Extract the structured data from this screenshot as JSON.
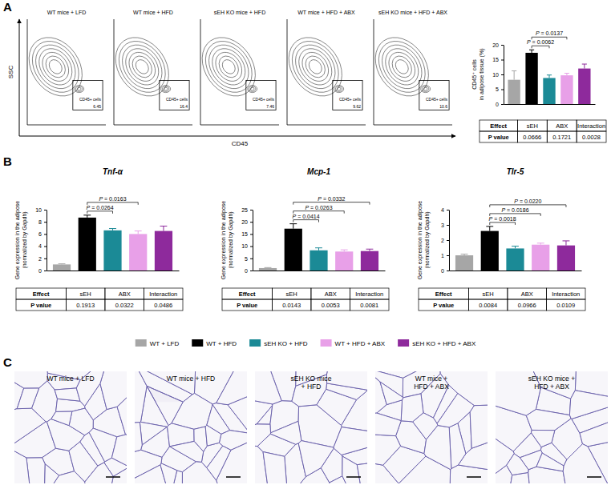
{
  "panel_labels": [
    "A",
    "B",
    "C"
  ],
  "flow": {
    "xlabel": "CD45",
    "ylabel": "SSC",
    "gate_label": "CD45+ cells",
    "plots": [
      {
        "title": "WT mice + LFD",
        "value": 6.45
      },
      {
        "title": "WT mice + HFD",
        "value": 16.4
      },
      {
        "title": "sEH KO mice + HFD",
        "value": 7.46
      },
      {
        "title": "WT mice + HFD + ABX",
        "value": 9.62
      },
      {
        "title": "sEH KO mice + HFD + ABX",
        "value": 10.6
      }
    ]
  },
  "chart_data": [
    {
      "type": "bar",
      "ylabel": [
        "CD45⁺ cells",
        "in adipose tissue (%)"
      ],
      "categories": [
        null,
        null,
        null,
        null,
        null
      ],
      "values": [
        8.2,
        17.3,
        8.8,
        9.7,
        12.0
      ],
      "errors": [
        3.0,
        1.0,
        1.0,
        0.7,
        1.5
      ],
      "colors": [
        "#a6a6a6",
        "#000000",
        "#1b8a96",
        "#e8a0e8",
        "#8e2a9c"
      ],
      "ylim": [
        0,
        20
      ],
      "yticks": [
        0,
        5,
        10,
        15,
        20
      ],
      "tick_labels": "y",
      "comparisons": [
        {
          "from": 1,
          "to": 3,
          "label": "P = 0.0137"
        },
        {
          "from": 1,
          "to": 2,
          "label": "P = 0.0062"
        }
      ],
      "table": {
        "header": [
          "Effect",
          "sEH",
          "ABX",
          "Interaction"
        ],
        "row": [
          "P value",
          "0.0666",
          "0.1721",
          "0.0028"
        ]
      }
    },
    {
      "type": "bar",
      "title": "Tnf-α",
      "ylabel": [
        "Gene expression in the adipose",
        "(normalized by Gapdh)"
      ],
      "categories": [
        null,
        null,
        null,
        null,
        null
      ],
      "values": [
        1.0,
        8.7,
        6.6,
        6.0,
        6.5
      ],
      "errors": [
        0.1,
        0.4,
        0.3,
        0.5,
        0.8
      ],
      "colors": [
        "#a6a6a6",
        "#000000",
        "#1b8a96",
        "#e8a0e8",
        "#8e2a9c"
      ],
      "ylim": [
        0,
        10
      ],
      "yticks": [
        0,
        2,
        4,
        6,
        8,
        10
      ],
      "tick_labels": "y",
      "comparisons": [
        {
          "from": 1,
          "to": 3,
          "label": "P = 0.0163"
        },
        {
          "from": 1,
          "to": 2,
          "label": "P = 0.0264"
        }
      ],
      "table": {
        "header": [
          "Effect",
          "sEH",
          "ABX",
          "Interaction"
        ],
        "row": [
          "P value",
          "0.1913",
          "0.0322",
          "0.0486"
        ]
      }
    },
    {
      "type": "bar",
      "title": "Mcp-1",
      "ylabel": [
        "Gene expression in the adipose",
        "(normalized by Gapdh)"
      ],
      "categories": [
        null,
        null,
        null,
        null,
        null
      ],
      "values": [
        1.0,
        17.2,
        8.3,
        7.8,
        8.0
      ],
      "errors": [
        0.2,
        2.0,
        1.0,
        0.7,
        0.8
      ],
      "colors": [
        "#a6a6a6",
        "#000000",
        "#1b8a96",
        "#e8a0e8",
        "#8e2a9c"
      ],
      "ylim": [
        0,
        25
      ],
      "yticks": [
        0,
        5,
        10,
        15,
        20,
        25
      ],
      "tick_labels": "y",
      "comparisons": [
        {
          "from": 1,
          "to": 4,
          "label": "P = 0.0332"
        },
        {
          "from": 1,
          "to": 3,
          "label": "P = 0.0263"
        },
        {
          "from": 1,
          "to": 2,
          "label": "P = 0.0414"
        }
      ],
      "table": {
        "header": [
          "Effect",
          "sEH",
          "ABX",
          "Interaction"
        ],
        "row": [
          "P value",
          "0.0143",
          "0.0053",
          "0.0081"
        ]
      }
    },
    {
      "type": "bar",
      "title": "Tlr-5",
      "ylabel": [
        "Gene expression in the adipose",
        "(normalized by Gapdh)"
      ],
      "categories": [
        null,
        null,
        null,
        null,
        null
      ],
      "values": [
        1.0,
        2.6,
        1.45,
        1.7,
        1.65
      ],
      "errors": [
        0.08,
        0.3,
        0.15,
        0.1,
        0.3
      ],
      "colors": [
        "#a6a6a6",
        "#000000",
        "#1b8a96",
        "#e8a0e8",
        "#8e2a9c"
      ],
      "ylim": [
        0,
        4
      ],
      "yticks": [
        0,
        1,
        2,
        3,
        4
      ],
      "tick_labels": "y",
      "comparisons": [
        {
          "from": 1,
          "to": 4,
          "label": "P = 0.0220"
        },
        {
          "from": 1,
          "to": 3,
          "label": "P = 0.0186"
        },
        {
          "from": 1,
          "to": 2,
          "label": "P = 0.0018"
        }
      ],
      "table": {
        "header": [
          "Effect",
          "sEH",
          "ABX",
          "Interaction"
        ],
        "row": [
          "P value",
          "0.0084",
          "0.0966",
          "0.0109"
        ]
      }
    }
  ],
  "legend": {
    "labels": [
      "WT + LFD",
      "WT + HFD",
      "sEH KO + HFD",
      "WT + HFD + ABX",
      "sEH KO + HFD + ABX"
    ],
    "colors": [
      "#a6a6a6",
      "#000000",
      "#1b8a96",
      "#e8a0e8",
      "#8e2a9c"
    ]
  },
  "histology": {
    "labels": [
      [
        "WT mice + LFD"
      ],
      [
        "WT mice + HFD"
      ],
      [
        "sEH KO mice",
        "+ HFD"
      ],
      [
        "WT mice +",
        "HFD + ABX"
      ],
      [
        "sEH KO mice +",
        "HFD + ABX"
      ]
    ]
  }
}
